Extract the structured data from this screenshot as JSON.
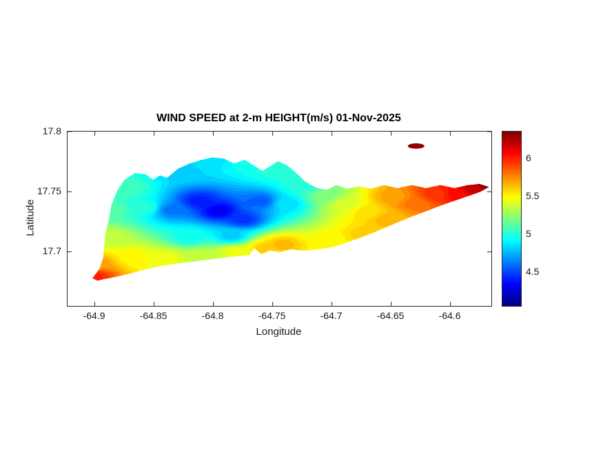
{
  "figure": {
    "background": "#ffffff"
  },
  "chart_data": {
    "type": "heatmap",
    "title": "WIND SPEED at 2-m HEIGHT(m/s) 01-Nov-2025",
    "xlabel": "Longitude",
    "ylabel": "Latitude",
    "units": "m/s",
    "x_range": [
      -64.923,
      -64.5655
    ],
    "y_range": [
      17.655,
      17.8
    ],
    "x_tick_values": [
      -64.9,
      -64.85,
      -64.8,
      -64.75,
      -64.7,
      -64.65,
      -64.6
    ],
    "x_tick_labels": [
      "-64.9",
      "-64.85",
      "-64.8",
      "-64.75",
      "-64.7",
      "-64.65",
      "-64.6"
    ],
    "y_tick_values": [
      17.8,
      17.75,
      17.7
    ],
    "y_tick_labels": [
      "17.8",
      "17.75",
      "17.7"
    ],
    "grid": false,
    "colorbar": {
      "colormap": "jet",
      "range": [
        4.05,
        6.35
      ],
      "tick_values": [
        6,
        5.5,
        5,
        4.5
      ],
      "tick_labels": [
        "6",
        "5.5",
        "5",
        "4.5"
      ],
      "position": "right"
    },
    "level_step": 0.05,
    "island_outline": [
      [
        -64.902,
        17.678
      ],
      [
        -64.896,
        17.686
      ],
      [
        -64.893,
        17.695
      ],
      [
        -64.892,
        17.705
      ],
      [
        -64.891,
        17.716
      ],
      [
        -64.888,
        17.727
      ],
      [
        -64.886,
        17.739
      ],
      [
        -64.881,
        17.751
      ],
      [
        -64.875,
        17.76
      ],
      [
        -64.866,
        17.7655
      ],
      [
        -64.857,
        17.7645
      ],
      [
        -64.851,
        17.76
      ],
      [
        -64.845,
        17.7635
      ],
      [
        -64.839,
        17.7615
      ],
      [
        -64.83,
        17.769
      ],
      [
        -64.82,
        17.7735
      ],
      [
        -64.81,
        17.7765
      ],
      [
        -64.801,
        17.7785
      ],
      [
        -64.791,
        17.7775
      ],
      [
        -64.7825,
        17.7735
      ],
      [
        -64.7735,
        17.7765
      ],
      [
        -64.7655,
        17.7715
      ],
      [
        -64.7585,
        17.7675
      ],
      [
        -64.7515,
        17.7715
      ],
      [
        -64.7455,
        17.7755
      ],
      [
        -64.738,
        17.772
      ],
      [
        -64.7305,
        17.766
      ],
      [
        -64.7225,
        17.7585
      ],
      [
        -64.7135,
        17.7535
      ],
      [
        -64.7045,
        17.7515
      ],
      [
        -64.6965,
        17.7555
      ],
      [
        -64.6875,
        17.7525
      ],
      [
        -64.6775,
        17.7545
      ],
      [
        -64.667,
        17.7525
      ],
      [
        -64.656,
        17.7555
      ],
      [
        -64.6445,
        17.753
      ],
      [
        -64.6325,
        17.7555
      ],
      [
        -64.6205,
        17.753
      ],
      [
        -64.6085,
        17.7555
      ],
      [
        -64.5965,
        17.753
      ],
      [
        -64.5855,
        17.7555
      ],
      [
        -64.5755,
        17.7565
      ],
      [
        -64.5675,
        17.754
      ],
      [
        -64.5745,
        17.75
      ],
      [
        -64.5845,
        17.7465
      ],
      [
        -64.5965,
        17.7425
      ],
      [
        -64.6095,
        17.738
      ],
      [
        -64.6225,
        17.733
      ],
      [
        -64.636,
        17.728
      ],
      [
        -64.6495,
        17.7225
      ],
      [
        -64.6625,
        17.717
      ],
      [
        -64.6755,
        17.712
      ],
      [
        -64.688,
        17.7075
      ],
      [
        -64.6995,
        17.704
      ],
      [
        -64.7115,
        17.702
      ],
      [
        -64.7235,
        17.701
      ],
      [
        -64.7345,
        17.702
      ],
      [
        -64.7435,
        17.7
      ],
      [
        -64.7525,
        17.701
      ],
      [
        -64.7595,
        17.698
      ],
      [
        -64.7655,
        17.703
      ],
      [
        -64.7695,
        17.6975
      ],
      [
        -64.778,
        17.6965
      ],
      [
        -64.788,
        17.6955
      ],
      [
        -64.8,
        17.694
      ],
      [
        -64.812,
        17.6925
      ],
      [
        -64.824,
        17.691
      ],
      [
        -64.836,
        17.6895
      ],
      [
        -64.848,
        17.6875
      ],
      [
        -64.859,
        17.685
      ],
      [
        -64.87,
        17.682
      ],
      [
        -64.881,
        17.6795
      ],
      [
        -64.891,
        17.6775
      ],
      [
        -64.898,
        17.676
      ]
    ],
    "offshore_island": {
      "center": [
        -64.629,
        17.788
      ],
      "rx": 0.007,
      "ry": 0.0022,
      "value": 6.3
    },
    "field_samples": [
      [
        -64.795,
        17.734,
        4.3
      ],
      [
        -64.812,
        17.742,
        4.4
      ],
      [
        -64.775,
        17.727,
        4.45
      ],
      [
        -64.76,
        17.742,
        4.55
      ],
      [
        -64.835,
        17.735,
        4.6
      ],
      [
        -64.858,
        17.737,
        5.0
      ],
      [
        -64.872,
        17.753,
        5.05
      ],
      [
        -64.885,
        17.735,
        5.1
      ],
      [
        -64.888,
        17.712,
        5.35
      ],
      [
        -64.898,
        17.69,
        5.7
      ],
      [
        -64.902,
        17.68,
        6.0
      ],
      [
        -64.868,
        17.695,
        5.5
      ],
      [
        -64.84,
        17.695,
        5.45
      ],
      [
        -64.81,
        17.697,
        5.35
      ],
      [
        -64.782,
        17.7,
        5.45
      ],
      [
        -64.757,
        17.703,
        5.6
      ],
      [
        -64.742,
        17.706,
        5.65
      ],
      [
        -64.82,
        17.712,
        4.95
      ],
      [
        -64.785,
        17.713,
        4.8
      ],
      [
        -64.75,
        17.77,
        5.0
      ],
      [
        -64.773,
        17.775,
        4.95
      ],
      [
        -64.8,
        17.777,
        4.85
      ],
      [
        -64.828,
        17.768,
        4.8
      ],
      [
        -64.738,
        17.74,
        4.85
      ],
      [
        -64.722,
        17.755,
        5.0
      ],
      [
        -64.705,
        17.747,
        5.2
      ],
      [
        -64.688,
        17.74,
        5.4
      ],
      [
        -64.67,
        17.733,
        5.55
      ],
      [
        -64.653,
        17.727,
        5.65
      ],
      [
        -64.648,
        17.745,
        5.7
      ],
      [
        -64.63,
        17.74,
        5.8
      ],
      [
        -64.612,
        17.748,
        5.95
      ],
      [
        -64.595,
        17.748,
        6.05
      ],
      [
        -64.578,
        17.753,
        6.2
      ],
      [
        -64.57,
        17.755,
        6.35
      ],
      [
        -64.7,
        17.708,
        5.5
      ],
      [
        -64.672,
        17.714,
        5.6
      ],
      [
        -64.629,
        17.788,
        6.3
      ]
    ]
  }
}
